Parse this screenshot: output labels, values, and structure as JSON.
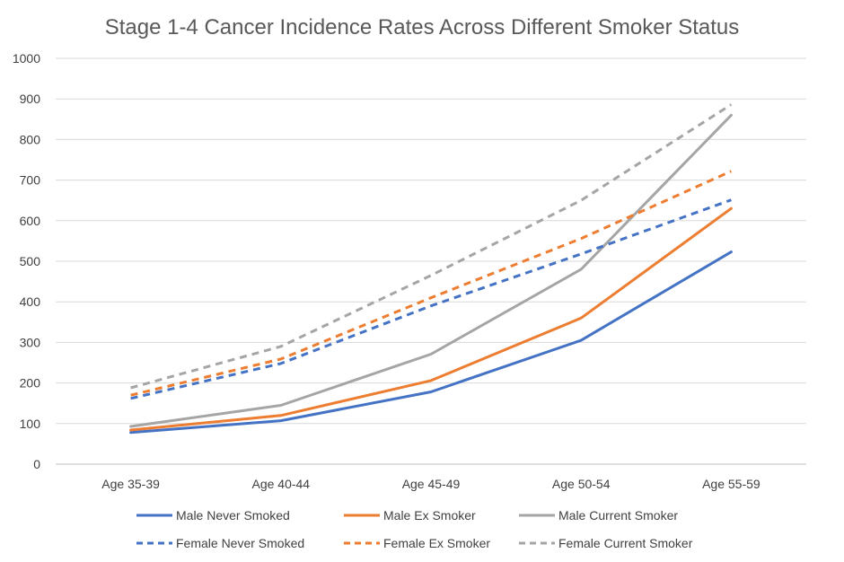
{
  "chart_data": {
    "type": "line",
    "title": "Stage 1-4 Cancer Incidence Rates Across Different Smoker Status",
    "xlabel": "",
    "ylabel": "",
    "categories": [
      "Age 35-39",
      "Age 40-44",
      "Age 45-49",
      "Age 50-54",
      "Age 55-59"
    ],
    "ylim": [
      0,
      1000
    ],
    "yticks": [
      0,
      100,
      200,
      300,
      400,
      500,
      600,
      700,
      800,
      900,
      1000
    ],
    "grid": true,
    "legend_position": "bottom",
    "series": [
      {
        "name": "Male Never Smoked",
        "color": "#4472C4",
        "dash": "solid",
        "values": [
          78,
          107,
          178,
          305,
          523
        ]
      },
      {
        "name": "Male Ex Smoker",
        "color": "#ED7D31",
        "dash": "solid",
        "values": [
          84,
          120,
          206,
          360,
          630
        ]
      },
      {
        "name": "Male Current Smoker",
        "color": "#A5A5A5",
        "dash": "solid",
        "values": [
          93,
          145,
          271,
          480,
          860
        ]
      },
      {
        "name": "Female Never Smoked",
        "color": "#4472C4",
        "dash": "dashed",
        "values": [
          162,
          248,
          390,
          518,
          651
        ]
      },
      {
        "name": "Female Ex Smoker",
        "color": "#ED7D31",
        "dash": "dashed",
        "values": [
          170,
          259,
          410,
          556,
          722
        ]
      },
      {
        "name": "Female Current Smoker",
        "color": "#A5A5A5",
        "dash": "dashed",
        "values": [
          188,
          290,
          465,
          650,
          886
        ]
      }
    ]
  }
}
